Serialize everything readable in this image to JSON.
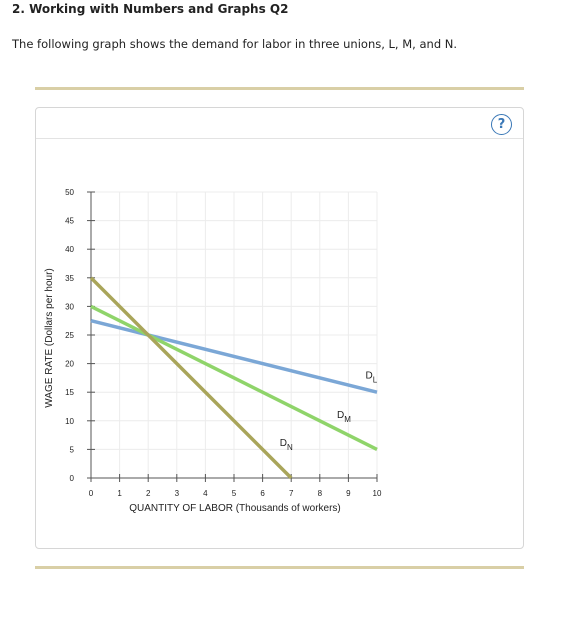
{
  "question": {
    "title": "2. Working with Numbers and Graphs Q2",
    "text": "The following graph shows the demand for labor in three unions, L, M, and N."
  },
  "help": {
    "label": "?",
    "icon": "question-circle-icon",
    "color": "#3a78b7"
  },
  "chart_data": {
    "type": "line",
    "xlabel": "QUANTITY OF LABOR (Thousands of workers)",
    "ylabel": "WAGE RATE (Dollars per hour)",
    "xlim": [
      0,
      10
    ],
    "ylim": [
      0,
      50
    ],
    "xticks": [
      0,
      1,
      2,
      3,
      4,
      5,
      6,
      7,
      8,
      9,
      10
    ],
    "yticks": [
      0,
      5,
      10,
      15,
      20,
      25,
      30,
      35,
      40,
      45,
      50
    ],
    "grid": true,
    "legend": "none",
    "series": [
      {
        "name": "L",
        "label_main": "D",
        "label_sub": "L",
        "color": "#7ba7d6",
        "x": [
          0,
          10
        ],
        "y": [
          27.5,
          15
        ],
        "label_at": [
          9.6,
          17.4
        ]
      },
      {
        "name": "M",
        "label_main": "D",
        "label_sub": "M",
        "color": "#8fd46a",
        "x": [
          0,
          10
        ],
        "y": [
          30,
          5
        ],
        "label_at": [
          8.6,
          10.5
        ]
      },
      {
        "name": "N",
        "label_main": "D",
        "label_sub": "N",
        "color": "#a9a55a",
        "x": [
          0,
          7
        ],
        "y": [
          35,
          0
        ],
        "label_at": [
          6.6,
          5.6
        ]
      }
    ]
  }
}
